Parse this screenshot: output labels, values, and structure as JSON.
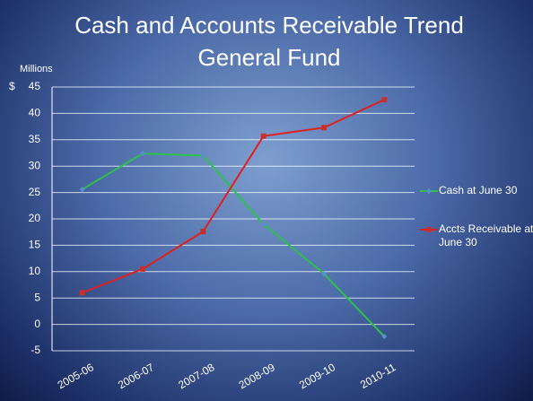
{
  "chart_data": {
    "type": "line",
    "title": [
      "Cash and Accounts Receivable Trend",
      "General Fund"
    ],
    "y_axis_label": "Millions",
    "y_unit": "$",
    "categories": [
      "2005-06",
      "2006-07",
      "2007-08",
      "2008-09",
      "2009-10",
      "2010-11"
    ],
    "series": [
      {
        "name": "Cash at June 30",
        "color": "#2cc24a",
        "marker_color": "#5a8fd0",
        "values": [
          25.6,
          32.4,
          32,
          19,
          9.6,
          -2.3
        ]
      },
      {
        "name": "Accts Receivable at June 30",
        "color": "#e0201e",
        "marker_color": "#c8302c",
        "values": [
          6,
          10.5,
          17.6,
          35.7,
          37.3,
          42.6
        ]
      }
    ],
    "ylim": [
      -5,
      45
    ],
    "yticks": [
      -5,
      0,
      5,
      10,
      15,
      20,
      25,
      30,
      35,
      40,
      45
    ],
    "grid": true,
    "legend": "right"
  }
}
